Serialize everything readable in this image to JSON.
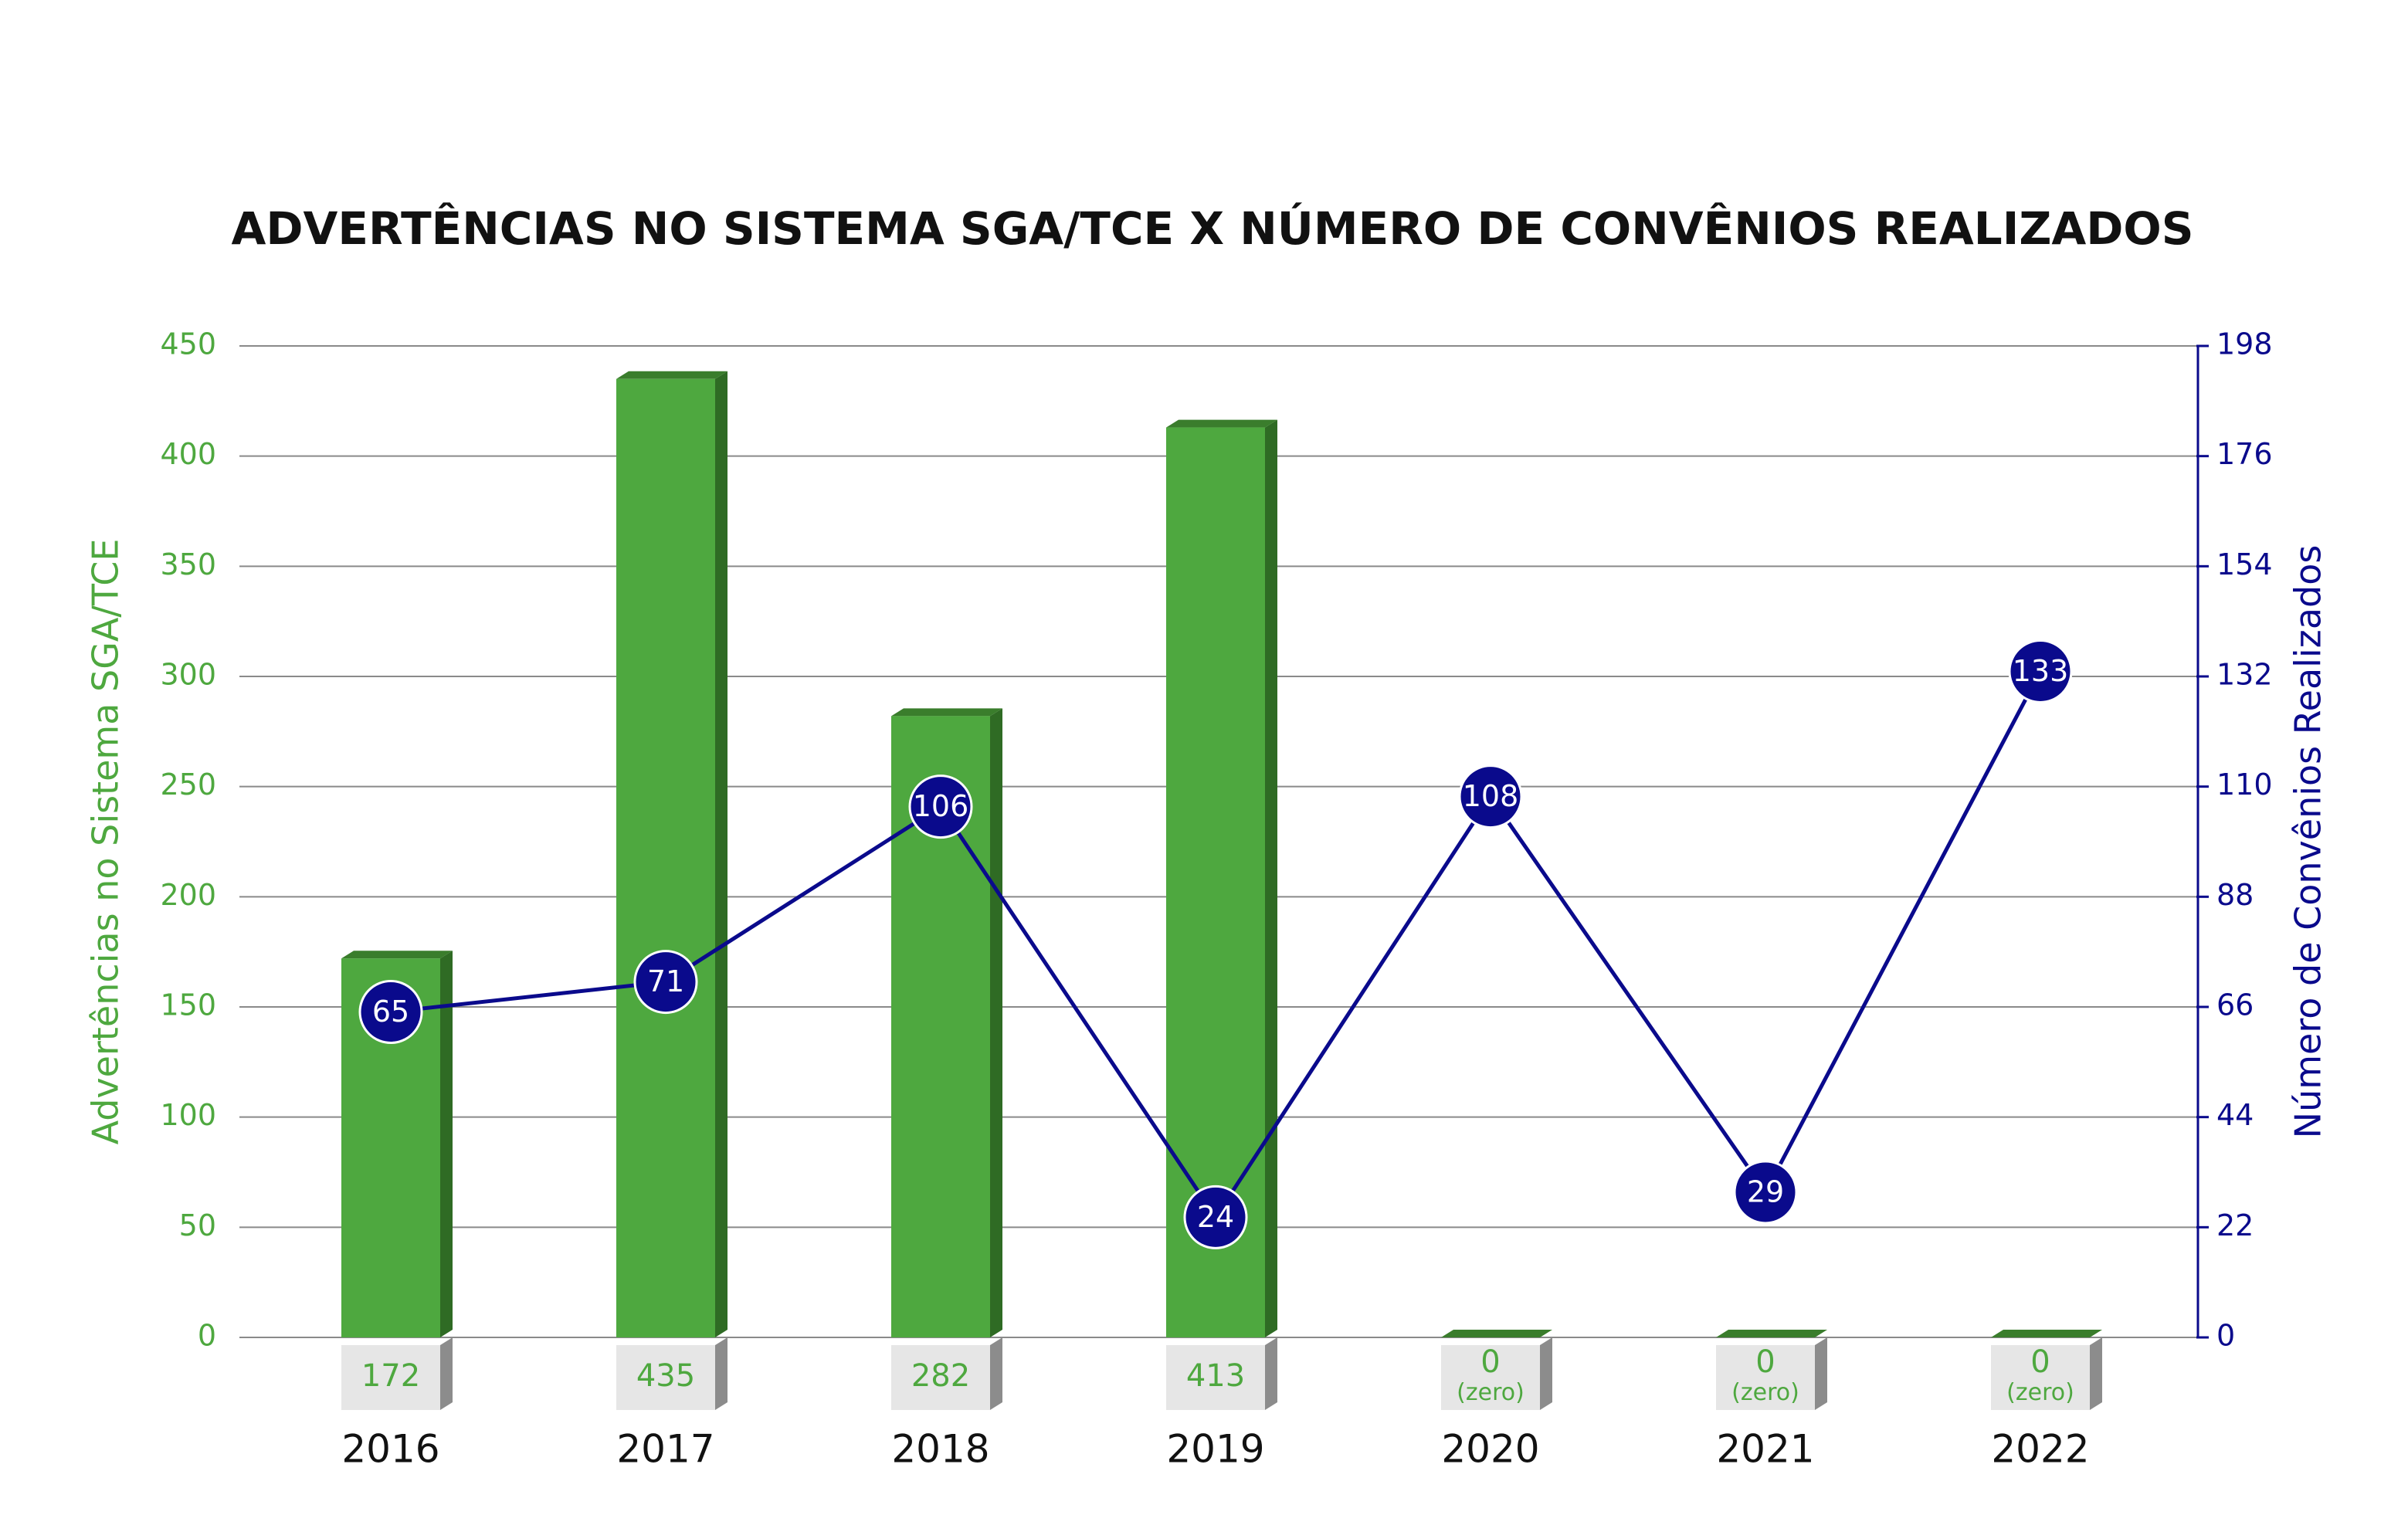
{
  "chart_data": {
    "type": "bar",
    "title": "ADVERTÊNCIAS NO SISTEMA SGA/TCE X NÚMERO DE CONVÊNIOS REALIZADOS",
    "categories": [
      "2016",
      "2017",
      "2018",
      "2019",
      "2020",
      "2021",
      "2022"
    ],
    "series": [
      {
        "type": "bar",
        "color": "#4ea83f",
        "values": [
          172,
          435,
          282,
          413,
          0,
          0,
          0
        ],
        "value_labels": [
          "172",
          "435",
          "282",
          "413",
          "0 (zero)",
          "0 (zero)",
          "0 (zero)"
        ]
      },
      {
        "type": "line",
        "axis": "y2",
        "color": "#0a0a8c",
        "values": [
          65,
          71,
          106,
          24,
          108,
          29,
          133
        ]
      }
    ],
    "ylabel": "Advertências no Sistema SGA/TCE",
    "y2label": "Número de Convênios Realizados",
    "ylim": [
      0,
      450
    ],
    "yticks": [
      0,
      50,
      100,
      150,
      200,
      250,
      300,
      350,
      400,
      450
    ],
    "y2lim": [
      0,
      198
    ],
    "y2ticks": [
      0,
      22,
      44,
      66,
      88,
      110,
      132,
      154,
      176,
      198
    ],
    "grid": true
  }
}
